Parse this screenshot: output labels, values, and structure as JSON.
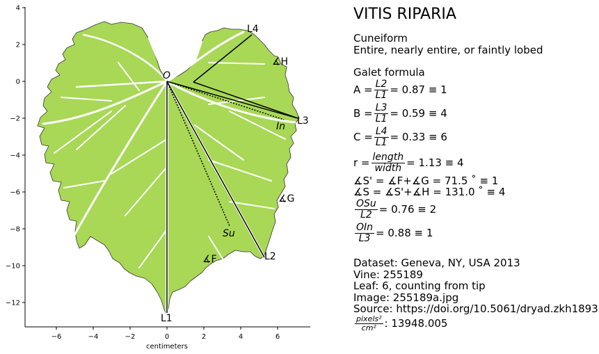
{
  "title": "VITIS RIPARIA",
  "shape": "Cuneiform",
  "margin": "Entire, nearly entire, or faintly lobed",
  "galet_heading": "Galet formula",
  "formulas": {
    "A": {
      "name": "A =",
      "num": "L2",
      "den": "L1",
      "value": "= 0.87 ≡ 1"
    },
    "B": {
      "name": "B =",
      "num": "L3",
      "den": "L1",
      "value": "= 0.59 ≡ 4"
    },
    "C": {
      "name": "C =",
      "num": "L4",
      "den": "L1",
      "value": "= 0.33 ≡ 6"
    },
    "r": {
      "name": "r =",
      "num": "length",
      "den": "width",
      "value": "= 1.13 ≡ 4"
    },
    "s_prime": "∡S' = ∡F+∡G = 71.5 ˚ ≡ 1",
    "s": "∡S = ∡S'+∡H = 131.0 ˚ ≡ 4",
    "osu": {
      "num": "OSu",
      "den": "L2",
      "value": "= 0.76 ≡ 2"
    },
    "oin": {
      "num": "OIn",
      "den": "L3",
      "value": "= 0.88 ≡ 1"
    }
  },
  "source": {
    "dataset": "Dataset: Geneva, NY, USA 2013",
    "vine": "Vine: 255189",
    "leaf": "Leaf: 6, counting from tip",
    "image": "Image: 255189a.jpg",
    "doi": "Source: https://doi.org/10.5061/dryad.zkh189377",
    "scale_num": "pixels²",
    "scale_den": "cm²",
    "scale_value": ": 13948.005"
  },
  "plot": {
    "xlabel": "centimeters",
    "xticks": [
      "−6",
      "−4",
      "−2",
      "0",
      "2",
      "4",
      "6"
    ],
    "yticks": [
      "4",
      "2",
      "0",
      "−2",
      "−4",
      "−6",
      "−8",
      "−10",
      "−12"
    ],
    "labels": {
      "origin": "O",
      "L1": "L1",
      "L2": "L2",
      "L3": "L3",
      "L4": "L4",
      "angleH": "∡H",
      "angleG": "∡G",
      "angleF": "∡F",
      "In": "In",
      "Su": "Su"
    }
  },
  "colors": {
    "leaf": "#a8d856",
    "vein": "#ffffff",
    "line": "#000000"
  }
}
